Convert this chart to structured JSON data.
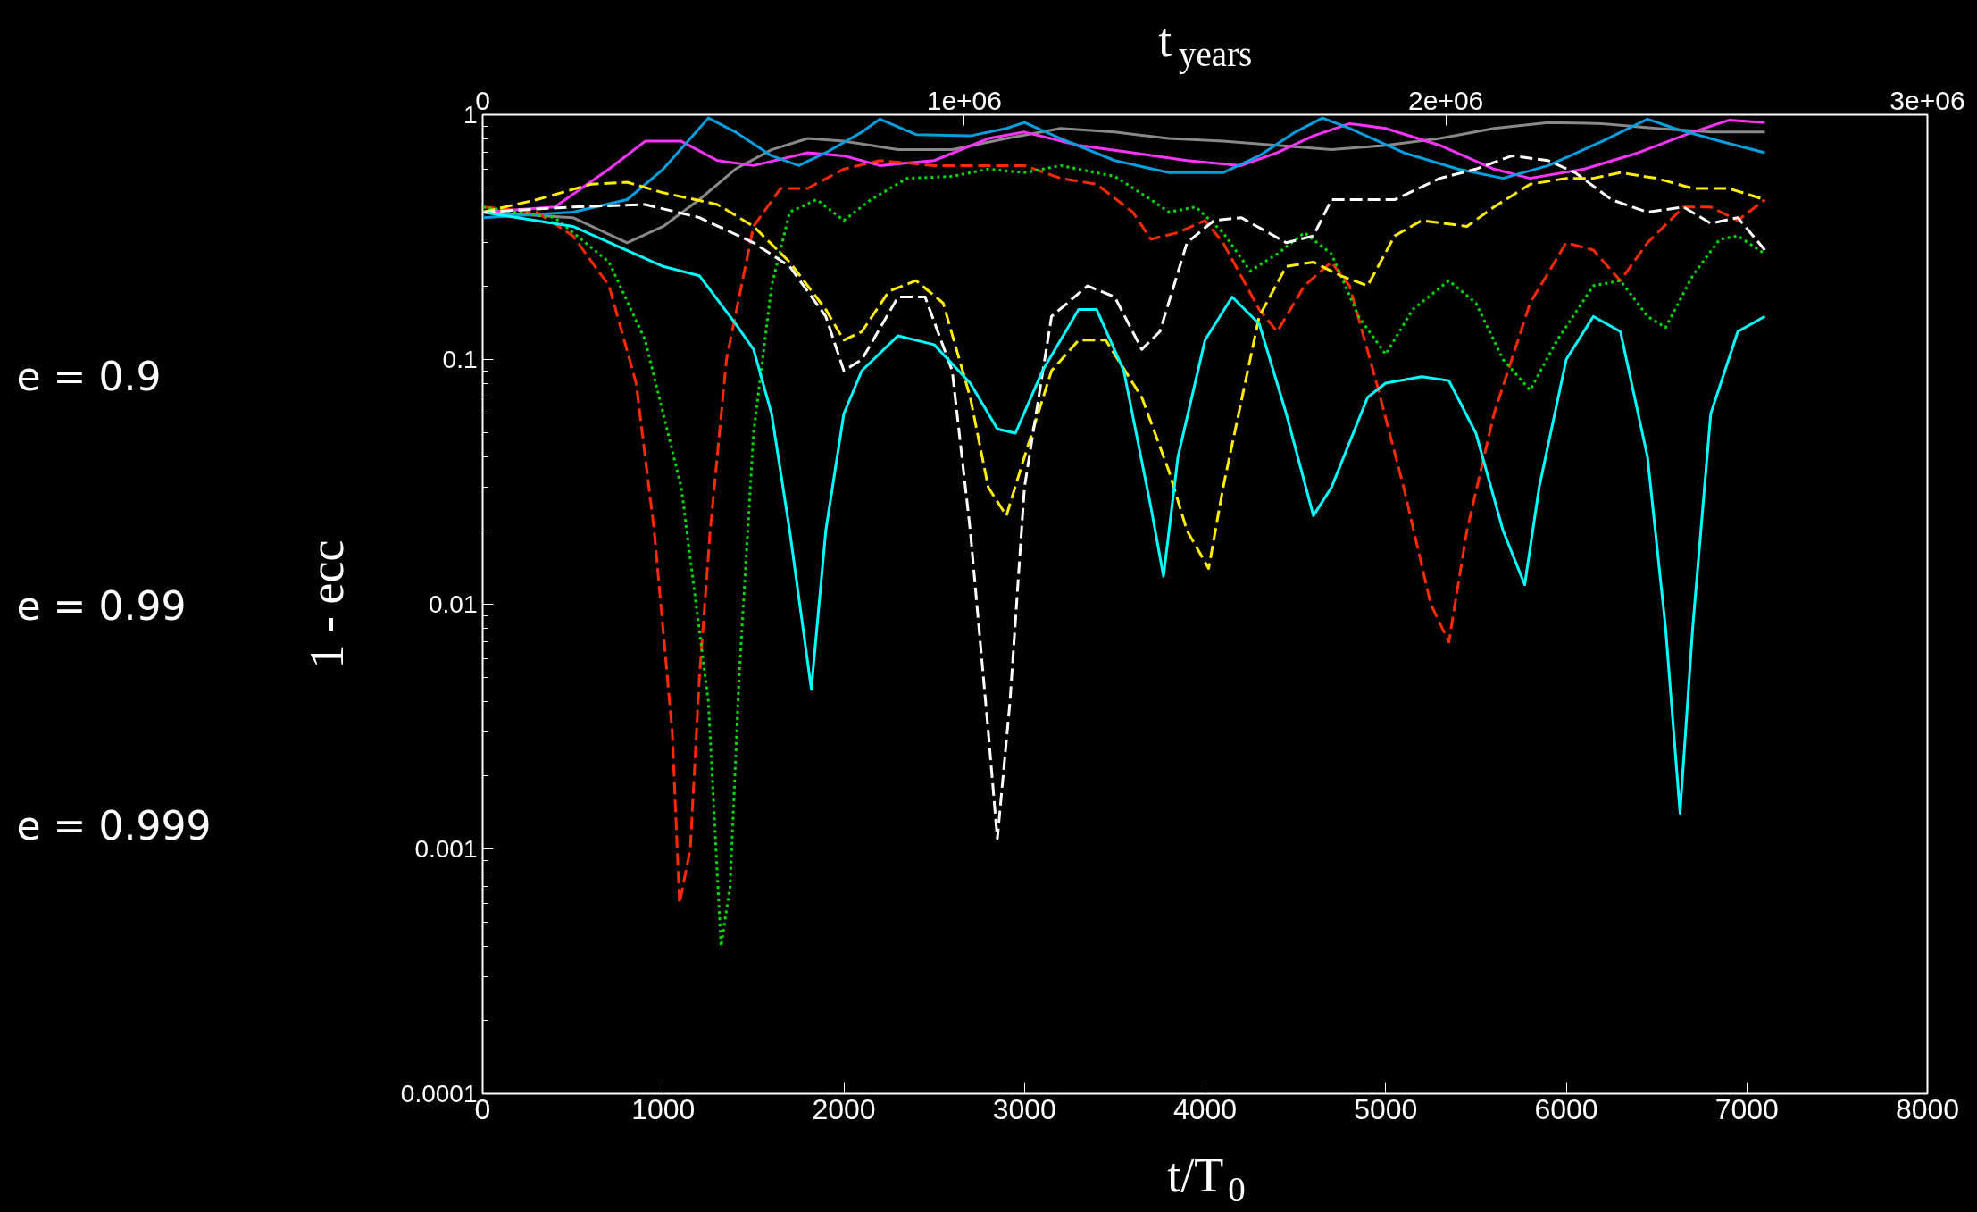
{
  "chart_data": {
    "type": "line",
    "xlabel": "t/T$_{0}$",
    "x2label": "t$_{years}$",
    "ylabel": "1 - ecc",
    "log": "y",
    "grid": false,
    "xlim": [
      0,
      8000
    ],
    "xticks": [
      0,
      1000,
      2000,
      3000,
      4000,
      5000,
      6000,
      7000,
      8000
    ],
    "x2lim": [
      0,
      3000000
    ],
    "x2ticks": [
      0,
      {
        "value": 1000000,
        "label": "1e+06"
      },
      {
        "value": 2000000,
        "label": "2e+06"
      },
      {
        "value": 3000000,
        "label": "3e+06"
      }
    ],
    "ylim": [
      0.0001,
      1
    ],
    "yticks": [
      0.0001,
      0.001,
      0.01,
      0.1,
      1
    ],
    "annotations": [
      "e = 0.9",
      "e = 0.99",
      "e = 0.999"
    ],
    "series": [
      {
        "color": "#888888",
        "line_style": "solid",
        "x": [
          0,
          500,
          800,
          1000,
          1200,
          1400,
          1600,
          1800,
          2000,
          2300,
          2600,
          2900,
          3200,
          3500,
          3800,
          4100,
          4400,
          4700,
          5000,
          5300,
          5600,
          5900,
          6200,
          6500,
          6800,
          7100
        ],
        "values": [
          0.4,
          0.38,
          0.3,
          0.35,
          0.45,
          0.6,
          0.72,
          0.8,
          0.78,
          0.72,
          0.72,
          0.8,
          0.88,
          0.85,
          0.8,
          0.78,
          0.75,
          0.72,
          0.75,
          0.8,
          0.88,
          0.93,
          0.92,
          0.88,
          0.85,
          0.85
        ]
      },
      {
        "color": "#ff33ff",
        "line_style": "solid",
        "x": [
          0,
          400,
          700,
          900,
          1100,
          1300,
          1500,
          1800,
          2000,
          2200,
          2500,
          2800,
          3000,
          3300,
          3600,
          3900,
          4200,
          4400,
          4600,
          4800,
          5000,
          5300,
          5600,
          5800,
          6100,
          6400,
          6700,
          6900,
          7100
        ],
        "values": [
          0.4,
          0.42,
          0.6,
          0.78,
          0.78,
          0.65,
          0.62,
          0.7,
          0.68,
          0.62,
          0.65,
          0.8,
          0.85,
          0.75,
          0.7,
          0.65,
          0.62,
          0.7,
          0.82,
          0.92,
          0.88,
          0.75,
          0.6,
          0.55,
          0.6,
          0.7,
          0.85,
          0.95,
          0.93
        ]
      },
      {
        "color": "#00a0e0",
        "line_style": "solid",
        "x": [
          0,
          500,
          800,
          1000,
          1150,
          1250,
          1400,
          1600,
          1750,
          1900,
          2100,
          2200,
          2400,
          2700,
          2900,
          3000,
          3200,
          3500,
          3800,
          4100,
          4300,
          4500,
          4650,
          4800,
          5100,
          5400,
          5650,
          5900,
          6200,
          6450,
          6600,
          6850,
          7100
        ],
        "values": [
          0.38,
          0.4,
          0.45,
          0.6,
          0.8,
          0.97,
          0.85,
          0.68,
          0.62,
          0.7,
          0.85,
          0.96,
          0.83,
          0.82,
          0.88,
          0.93,
          0.8,
          0.65,
          0.58,
          0.58,
          0.68,
          0.85,
          0.97,
          0.88,
          0.7,
          0.6,
          0.55,
          0.62,
          0.78,
          0.96,
          0.88,
          0.78,
          0.7
        ]
      },
      {
        "color": "#ff2a00",
        "line_style": "dashed",
        "x": [
          0,
          300,
          500,
          700,
          850,
          950,
          1050,
          1090,
          1150,
          1200,
          1260,
          1350,
          1500,
          1650,
          1800,
          2000,
          2200,
          2500,
          2800,
          3000,
          3200,
          3400,
          3600,
          3700,
          3850,
          4000,
          4100,
          4300,
          4400,
          4550,
          4700,
          4800,
          4950,
          5100,
          5250,
          5350,
          5450,
          5600,
          5800,
          6000,
          6150,
          6300,
          6450,
          6650,
          6800,
          6950,
          7100
        ],
        "values": [
          0.42,
          0.4,
          0.32,
          0.2,
          0.08,
          0.02,
          0.003,
          0.0006,
          0.001,
          0.005,
          0.02,
          0.1,
          0.35,
          0.5,
          0.5,
          0.6,
          0.65,
          0.62,
          0.62,
          0.62,
          0.55,
          0.52,
          0.4,
          0.31,
          0.33,
          0.37,
          0.3,
          0.16,
          0.13,
          0.2,
          0.25,
          0.2,
          0.08,
          0.03,
          0.01,
          0.007,
          0.02,
          0.06,
          0.17,
          0.3,
          0.28,
          0.21,
          0.3,
          0.42,
          0.42,
          0.37,
          0.45
        ]
      },
      {
        "color": "#00dd00",
        "line_style": "dotted",
        "x": [
          0,
          400,
          700,
          900,
          1100,
          1250,
          1320,
          1370,
          1420,
          1500,
          1600,
          1700,
          1850,
          2000,
          2150,
          2350,
          2600,
          2800,
          3000,
          3200,
          3500,
          3700,
          3800,
          3950,
          4100,
          4250,
          4400,
          4550,
          4700,
          4850,
          5000,
          5150,
          5350,
          5500,
          5650,
          5800,
          5950,
          6150,
          6300,
          6450,
          6550,
          6700,
          6850,
          6950,
          7100
        ],
        "values": [
          0.42,
          0.38,
          0.25,
          0.12,
          0.03,
          0.004,
          0.0004,
          0.0007,
          0.005,
          0.05,
          0.2,
          0.4,
          0.45,
          0.37,
          0.45,
          0.55,
          0.56,
          0.6,
          0.58,
          0.62,
          0.56,
          0.45,
          0.4,
          0.42,
          0.33,
          0.23,
          0.27,
          0.33,
          0.27,
          0.15,
          0.105,
          0.16,
          0.21,
          0.17,
          0.1,
          0.075,
          0.12,
          0.2,
          0.21,
          0.15,
          0.135,
          0.22,
          0.31,
          0.32,
          0.27
        ]
      },
      {
        "color": "#ffee00",
        "line_style": "dashed",
        "x": [
          0,
          300,
          600,
          800,
          1000,
          1300,
          1500,
          1700,
          1900,
          2000,
          2100,
          2250,
          2400,
          2550,
          2700,
          2800,
          2900,
          3000,
          3150,
          3300,
          3450,
          3650,
          3800,
          3900,
          4020,
          4100,
          4300,
          4450,
          4600,
          4750,
          4900,
          5050,
          5200,
          5450,
          5600,
          5800,
          6000,
          6150,
          6300,
          6500,
          6700,
          6900,
          7100
        ],
        "values": [
          0.4,
          0.45,
          0.52,
          0.53,
          0.48,
          0.43,
          0.35,
          0.25,
          0.16,
          0.12,
          0.13,
          0.19,
          0.21,
          0.17,
          0.07,
          0.03,
          0.023,
          0.04,
          0.09,
          0.12,
          0.12,
          0.07,
          0.035,
          0.02,
          0.014,
          0.03,
          0.15,
          0.24,
          0.25,
          0.22,
          0.2,
          0.32,
          0.37,
          0.35,
          0.42,
          0.52,
          0.55,
          0.55,
          0.58,
          0.55,
          0.5,
          0.5,
          0.45
        ]
      },
      {
        "color": "#ffffff",
        "line_style": "dashed",
        "x": [
          0,
          500,
          900,
          1200,
          1500,
          1700,
          1900,
          2000,
          2100,
          2300,
          2450,
          2600,
          2700,
          2800,
          2850,
          2920,
          3000,
          3150,
          3350,
          3500,
          3650,
          3750,
          3900,
          4050,
          4200,
          4350,
          4450,
          4600,
          4700,
          4900,
          5050,
          5300,
          5500,
          5700,
          5900,
          6050,
          6250,
          6450,
          6650,
          6800,
          6950,
          7100
        ],
        "values": [
          0.4,
          0.42,
          0.43,
          0.38,
          0.3,
          0.24,
          0.15,
          0.09,
          0.1,
          0.18,
          0.18,
          0.09,
          0.02,
          0.003,
          0.0011,
          0.004,
          0.03,
          0.15,
          0.2,
          0.18,
          0.11,
          0.13,
          0.3,
          0.37,
          0.38,
          0.33,
          0.3,
          0.32,
          0.45,
          0.45,
          0.45,
          0.55,
          0.6,
          0.68,
          0.65,
          0.58,
          0.45,
          0.4,
          0.42,
          0.36,
          0.38,
          0.28
        ]
      },
      {
        "color": "#00ffff",
        "line_style": "solid",
        "x": [
          0,
          500,
          1000,
          1200,
          1400,
          1500,
          1600,
          1700,
          1820,
          1900,
          2000,
          2100,
          2300,
          2500,
          2700,
          2850,
          2950,
          3100,
          3300,
          3400,
          3550,
          3700,
          3770,
          3850,
          4000,
          4150,
          4300,
          4450,
          4600,
          4700,
          4900,
          5000,
          5200,
          5350,
          5500,
          5650,
          5770,
          5850,
          6000,
          6150,
          6300,
          6450,
          6550,
          6630,
          6700,
          6800,
          6950,
          7100
        ],
        "values": [
          0.4,
          0.35,
          0.24,
          0.22,
          0.14,
          0.11,
          0.06,
          0.02,
          0.0045,
          0.02,
          0.06,
          0.09,
          0.125,
          0.115,
          0.08,
          0.052,
          0.05,
          0.09,
          0.16,
          0.16,
          0.09,
          0.025,
          0.013,
          0.04,
          0.12,
          0.18,
          0.14,
          0.06,
          0.023,
          0.03,
          0.07,
          0.08,
          0.085,
          0.082,
          0.05,
          0.02,
          0.012,
          0.03,
          0.1,
          0.15,
          0.13,
          0.04,
          0.008,
          0.0014,
          0.008,
          0.06,
          0.13,
          0.15
        ]
      }
    ]
  }
}
